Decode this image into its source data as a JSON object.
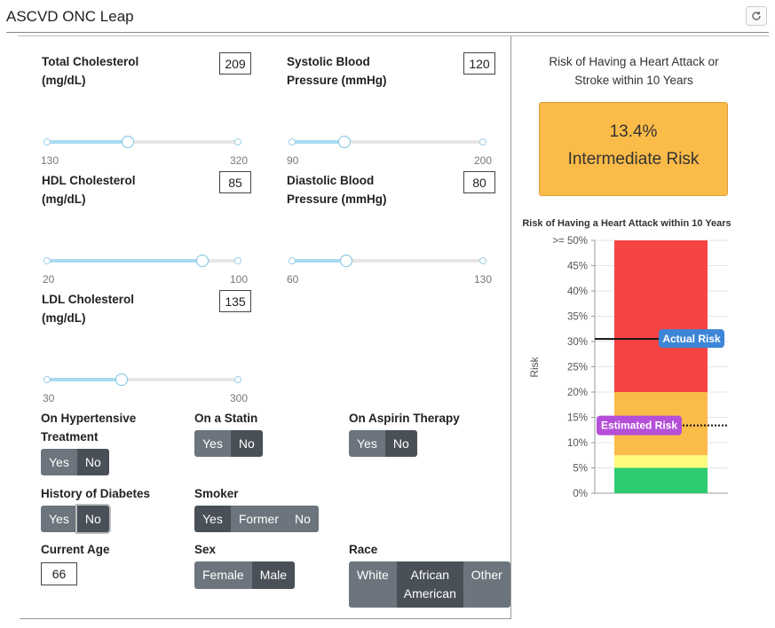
{
  "app": {
    "title": "ASCVD ONC Leap",
    "refresh_icon": "refresh-icon"
  },
  "fields": {
    "total_chol": {
      "label1": "Total Cholesterol",
      "label2": "(mg/dL)",
      "value": "209",
      "min": "130",
      "max": "320",
      "level": 0.4211
    },
    "systolic": {
      "label1": "Systolic Blood",
      "label2": "Pressure (mmHg)",
      "value": "120",
      "min": "90",
      "max": "200",
      "level": 0.2727
    },
    "hdl": {
      "label1": "HDL Cholesterol",
      "label2": "(mg/dL)",
      "value": "85",
      "min": "20",
      "max": "100",
      "level": 0.8125
    },
    "diastolic": {
      "label1": "Diastolic Blood",
      "label2": "Pressure (mmHg)",
      "value": "80",
      "min": "60",
      "max": "130",
      "level": 0.2857
    },
    "ldl": {
      "label1": "LDL Cholesterol",
      "label2": "(mg/dL)",
      "value": "135",
      "min": "30",
      "max": "300",
      "level": 0.3889
    }
  },
  "toggles": {
    "hypertensive": {
      "label1": "On Hypertensive",
      "label2": "Treatment",
      "options": [
        "Yes",
        "No"
      ],
      "selected": "No"
    },
    "statin": {
      "label": "On a Statin",
      "options": [
        "Yes",
        "No"
      ],
      "selected": "No"
    },
    "aspirin": {
      "label": "On Aspirin Therapy",
      "options": [
        "Yes",
        "No"
      ],
      "selected": "No"
    },
    "diabetes": {
      "label": "History of Diabetes",
      "options": [
        "Yes",
        "No"
      ],
      "selected": "No"
    },
    "smoker": {
      "label": "Smoker",
      "options": [
        "Yes",
        "Former",
        "No"
      ],
      "selected": "Yes"
    },
    "sex": {
      "label": "Sex",
      "options": [
        "Female",
        "Male"
      ],
      "selected": "Male"
    },
    "race": {
      "label": "Race",
      "options": [
        "White",
        "African American",
        "Other"
      ],
      "selected": "African American"
    }
  },
  "age": {
    "label": "Current Age",
    "value": "66"
  },
  "result": {
    "title": "Risk of Having a Heart Attack or Stroke within 10 Years",
    "value": "13.4%",
    "category": "Intermediate Risk",
    "color": "#fbbb48"
  },
  "chart_data": {
    "type": "bar",
    "title": "Risk of Having a Heart Attack within 10 Years",
    "ylabel": "Risk",
    "ylim": [
      0,
      50
    ],
    "yticks": [
      "0%",
      "5%",
      "10%",
      "15%",
      "20%",
      "25%",
      "30%",
      "35%",
      "40%",
      "45%",
      ">= 50%"
    ],
    "bands": [
      {
        "from": 0,
        "to": 5,
        "color": "#2ecc71"
      },
      {
        "from": 5,
        "to": 7.5,
        "color": "#fdfa7e"
      },
      {
        "from": 7.5,
        "to": 20,
        "color": "#fbbb48"
      },
      {
        "from": 20,
        "to": 50,
        "color": "#f64444"
      }
    ],
    "markers": [
      {
        "label": "Actual Risk",
        "value": 30.5,
        "color": "#3d85d6",
        "style": "solid"
      },
      {
        "label": "Estimated Risk",
        "value": 13.4,
        "color": "#b54fd8",
        "style": "dotted"
      }
    ]
  }
}
